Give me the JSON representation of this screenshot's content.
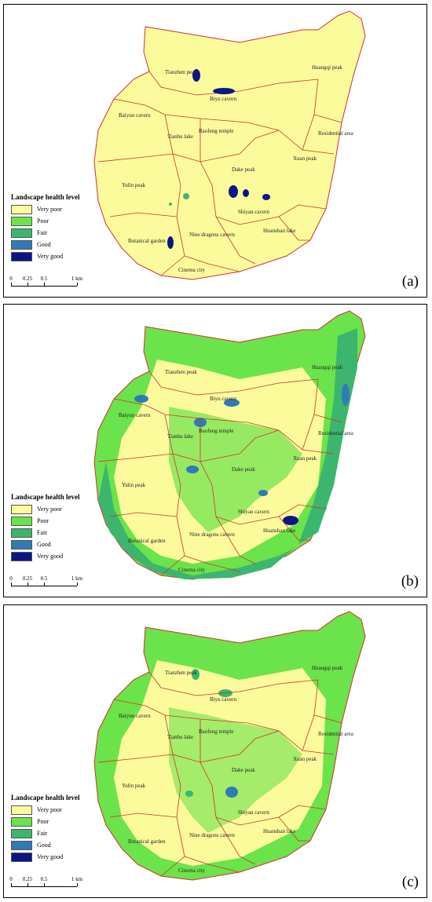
{
  "panels": [
    {
      "id": "a",
      "letter": "(a)"
    },
    {
      "id": "b",
      "letter": "(b)"
    },
    {
      "id": "c",
      "letter": "(c)"
    }
  ],
  "legend": {
    "title": "Landscape health level",
    "items": [
      {
        "label": "Very poor",
        "color": "#fbfb9c"
      },
      {
        "label": "Poor",
        "color": "#6be34a"
      },
      {
        "label": "Fair",
        "color": "#3cb66e"
      },
      {
        "label": "Good",
        "color": "#2f7bb5"
      },
      {
        "label": "Very good",
        "color": "#0c1585"
      }
    ]
  },
  "scalebar": {
    "ticks": [
      "0",
      "0.25",
      "0.5",
      "1 km"
    ]
  },
  "regions": [
    "Tianzhen peak",
    "Biyu cavern",
    "Huangqi peak",
    "Baiyun cavern",
    "Baofeng temple",
    "Tianhu lake",
    "Residential area",
    "Xuan peak",
    "Dake peak",
    "Yulin peak",
    "Shiyan cavern",
    "Huanshan lake",
    "Botanical garden",
    "Nine dragons cavern",
    "Cinema city"
  ],
  "colors": {
    "boundary": "#d32f2f",
    "background_fill": "#fbfb9c"
  }
}
